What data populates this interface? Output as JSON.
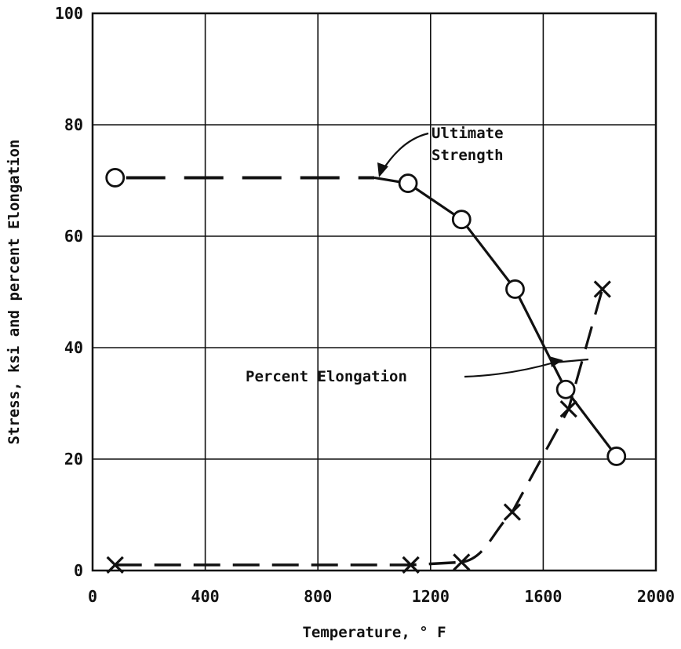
{
  "colors": {
    "ink": "#111111",
    "background": "#ffffff",
    "grid": "#111111"
  },
  "chart_data": {
    "type": "line",
    "title": "",
    "xlabel": "Temperature, ° F",
    "ylabel": "Stress, ksi and percent Elongation",
    "xlim": [
      0,
      2000
    ],
    "ylim": [
      0,
      100
    ],
    "grid": true,
    "xticks": [
      "0",
      "400",
      "800",
      "1200",
      "1600",
      "2000"
    ],
    "yticks": [
      "0",
      "20",
      "40",
      "60",
      "80",
      "100"
    ],
    "series": [
      {
        "name": "Ultimate Strength",
        "marker": "circle",
        "points": [
          [
            80,
            70.5
          ],
          [
            1120,
            69.5
          ],
          [
            1310,
            63
          ],
          [
            1500,
            50.5
          ],
          [
            1680,
            32.5
          ],
          [
            1860,
            20.5
          ]
        ],
        "dashed_until_x": 1000
      },
      {
        "name": "Percent Elongation",
        "marker": "x",
        "points": [
          [
            80,
            1
          ],
          [
            1130,
            1
          ],
          [
            1310,
            1.5
          ],
          [
            1490,
            10.5
          ],
          [
            1690,
            29
          ],
          [
            1810,
            50.5
          ]
        ],
        "dashed": true
      }
    ],
    "annotations": [
      {
        "text": [
          "Ultimate",
          "Strength"
        ],
        "target_series": "Ultimate Strength"
      },
      {
        "text": [
          "Percent Elongation"
        ],
        "target_series": "Percent Elongation"
      }
    ]
  }
}
